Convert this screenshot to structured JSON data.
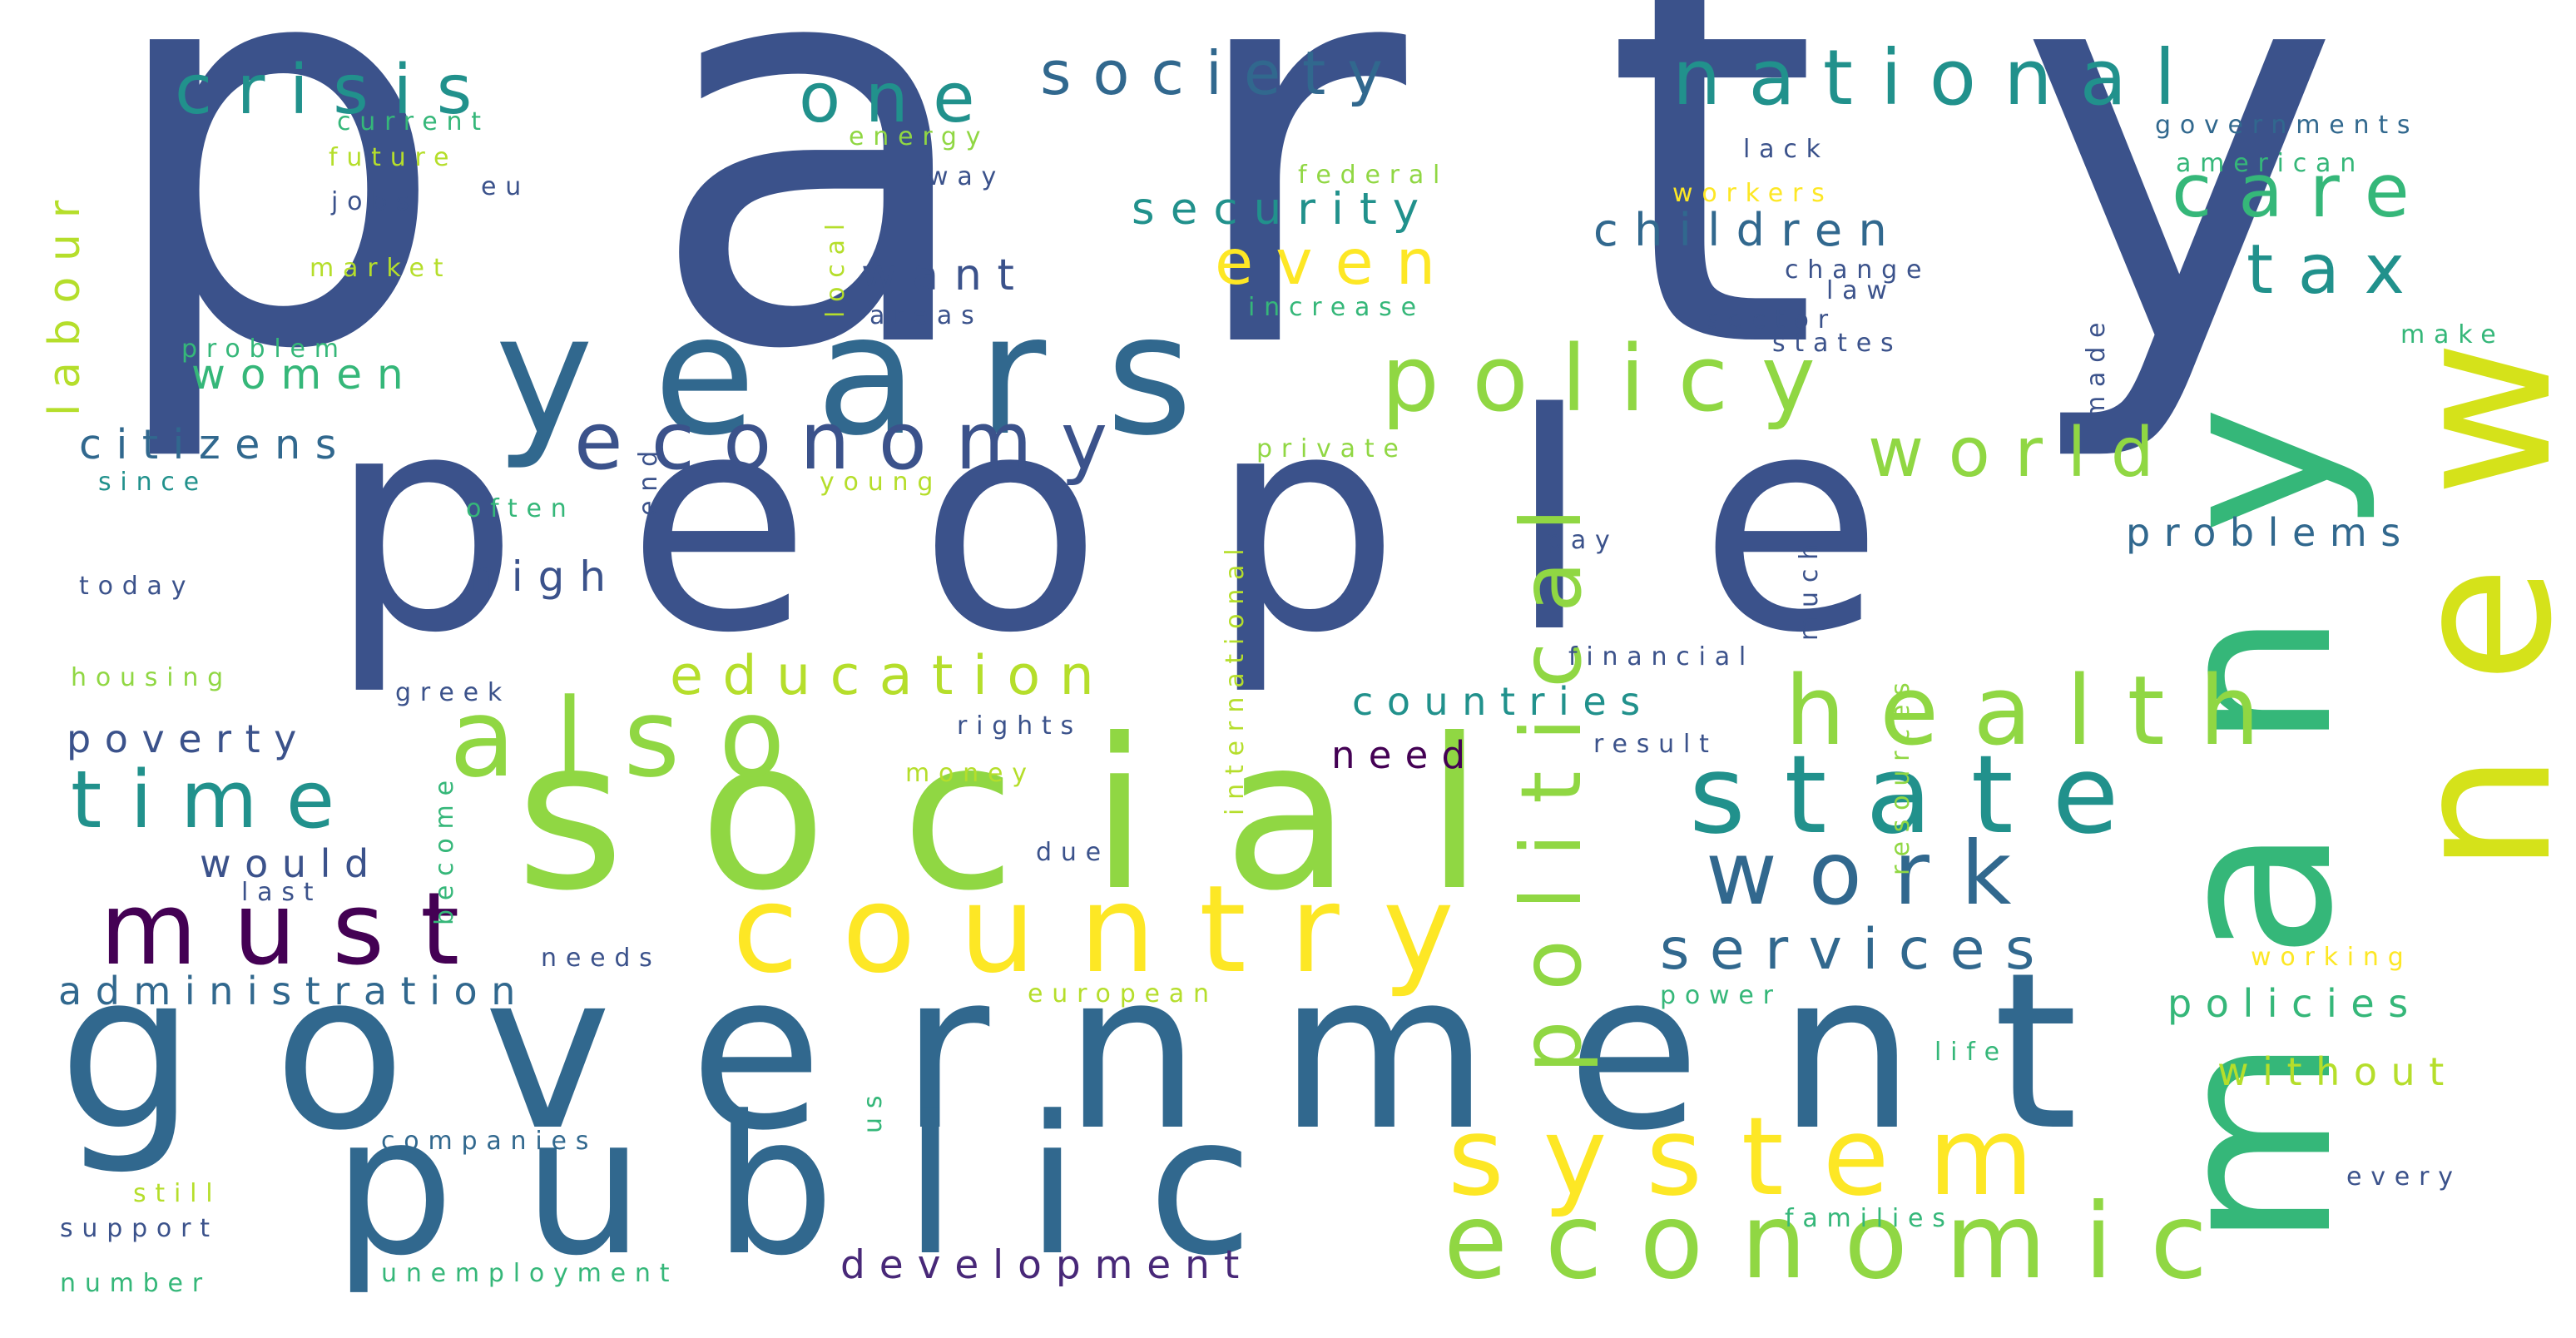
{
  "palette": {
    "purple": "#440154",
    "indigo": "#3b528b",
    "blue": "#31688e",
    "teal": "#21918c",
    "green": "#35b779",
    "lime": "#90d743",
    "yellow": "#fde725",
    "background": "#ffffff"
  },
  "words": [
    {
      "text": "party",
      "color": "#3b528b"
    },
    {
      "text": "people",
      "color": "#3b528b"
    },
    {
      "text": "social",
      "color": "#90d743"
    },
    {
      "text": "government",
      "color": "#31688e"
    },
    {
      "text": "many",
      "color": "#35b779"
    },
    {
      "text": "years",
      "color": "#31688e"
    },
    {
      "text": "public",
      "color": "#31688e"
    },
    {
      "text": "new",
      "color": "#d5e21a"
    },
    {
      "text": "country",
      "color": "#fde725"
    },
    {
      "text": "economic",
      "color": "#90d743"
    },
    {
      "text": "state",
      "color": "#21918c"
    },
    {
      "text": "health",
      "color": "#90d743"
    },
    {
      "text": "also",
      "color": "#90d743"
    },
    {
      "text": "system",
      "color": "#fde725"
    },
    {
      "text": "policy",
      "color": "#90d743"
    },
    {
      "text": "political",
      "color": "#90d743"
    },
    {
      "text": "economy",
      "color": "#3b528b"
    },
    {
      "text": "work",
      "color": "#31688e"
    },
    {
      "text": "must",
      "color": "#440154"
    },
    {
      "text": "time",
      "color": "#21918c"
    },
    {
      "text": "national",
      "color": "#21918c"
    },
    {
      "text": "crisis",
      "color": "#21918c"
    },
    {
      "text": "one",
      "color": "#21918c"
    },
    {
      "text": "society",
      "color": "#31688e"
    },
    {
      "text": "care",
      "color": "#35b779"
    },
    {
      "text": "tax",
      "color": "#21918c"
    },
    {
      "text": "even",
      "color": "#fde725"
    },
    {
      "text": "world",
      "color": "#90d743"
    },
    {
      "text": "education",
      "color": "#b5de2b"
    },
    {
      "text": "services",
      "color": "#31688e"
    },
    {
      "text": "security",
      "color": "#21918c"
    },
    {
      "text": "children",
      "color": "#31688e"
    },
    {
      "text": "want",
      "color": "#3b528b"
    },
    {
      "text": "women",
      "color": "#35b779"
    },
    {
      "text": "citizens",
      "color": "#31688e"
    },
    {
      "text": "labour",
      "color": "#b5de2b"
    },
    {
      "text": "high",
      "color": "#3b528b"
    },
    {
      "text": "problems",
      "color": "#31688e"
    },
    {
      "text": "countries",
      "color": "#21918c"
    },
    {
      "text": "poverty",
      "color": "#3b528b"
    },
    {
      "text": "need",
      "color": "#440154"
    },
    {
      "text": "would",
      "color": "#3b528b"
    },
    {
      "text": "administration",
      "color": "#31688e"
    },
    {
      "text": "development",
      "color": "#482878"
    },
    {
      "text": "policies",
      "color": "#35b779"
    },
    {
      "text": "without",
      "color": "#b5de2b"
    },
    {
      "text": "international",
      "color": "#b5de2b"
    },
    {
      "text": "resources",
      "color": "#90d743"
    },
    {
      "text": "much",
      "color": "#3b528b"
    },
    {
      "text": "financial",
      "color": "#3b528b"
    },
    {
      "text": "current",
      "color": "#35b779"
    },
    {
      "text": "energy",
      "color": "#90d743"
    },
    {
      "text": "future",
      "color": "#b5de2b"
    },
    {
      "text": "eu",
      "color": "#3b528b"
    },
    {
      "text": "way",
      "color": "#3b528b"
    },
    {
      "text": "jobs",
      "color": "#3b528b"
    },
    {
      "text": "market",
      "color": "#b5de2b"
    },
    {
      "text": "local",
      "color": "#b5de2b"
    },
    {
      "text": "federal",
      "color": "#90d743"
    },
    {
      "text": "lack",
      "color": "#3b528b"
    },
    {
      "text": "workers",
      "color": "#fde725"
    },
    {
      "text": "governments",
      "color": "#31688e"
    },
    {
      "text": "american",
      "color": "#35b779"
    },
    {
      "text": "change",
      "color": "#3b528b"
    },
    {
      "text": "law",
      "color": "#3b528b"
    },
    {
      "text": "areas",
      "color": "#3b528b"
    },
    {
      "text": "increase",
      "color": "#35b779"
    },
    {
      "text": "sector",
      "color": "#3b528b"
    },
    {
      "text": "states",
      "color": "#3b528b"
    },
    {
      "text": "make",
      "color": "#35b779"
    },
    {
      "text": "made",
      "color": "#3b528b"
    },
    {
      "text": "problem",
      "color": "#35b779"
    },
    {
      "text": "since",
      "color": "#21918c"
    },
    {
      "text": "end",
      "color": "#3b528b"
    },
    {
      "text": "private",
      "color": "#90d743"
    },
    {
      "text": "young",
      "color": "#b5de2b"
    },
    {
      "text": "often",
      "color": "#35b779"
    },
    {
      "text": "pay",
      "color": "#3b528b"
    },
    {
      "text": "today",
      "color": "#3b528b"
    },
    {
      "text": "housing",
      "color": "#90d743"
    },
    {
      "text": "greek",
      "color": "#3b528b"
    },
    {
      "text": "rights",
      "color": "#3b528b"
    },
    {
      "text": "money",
      "color": "#b5de2b"
    },
    {
      "text": "become",
      "color": "#35b779"
    },
    {
      "text": "result",
      "color": "#3b528b"
    },
    {
      "text": "due",
      "color": "#3b528b"
    },
    {
      "text": "last",
      "color": "#3b528b"
    },
    {
      "text": "needs",
      "color": "#3b528b"
    },
    {
      "text": "european",
      "color": "#b5de2b"
    },
    {
      "text": "power",
      "color": "#35b779"
    },
    {
      "text": "working",
      "color": "#fde725"
    },
    {
      "text": "life",
      "color": "#35b779"
    },
    {
      "text": "us",
      "color": "#35b779"
    },
    {
      "text": "companies",
      "color": "#31688e"
    },
    {
      "text": "still",
      "color": "#b5de2b"
    },
    {
      "text": "support",
      "color": "#3b528b"
    },
    {
      "text": "number",
      "color": "#35b779"
    },
    {
      "text": "unemployment",
      "color": "#35b779"
    },
    {
      "text": "families",
      "color": "#35b779"
    },
    {
      "text": "every",
      "color": "#3b528b"
    }
  ]
}
